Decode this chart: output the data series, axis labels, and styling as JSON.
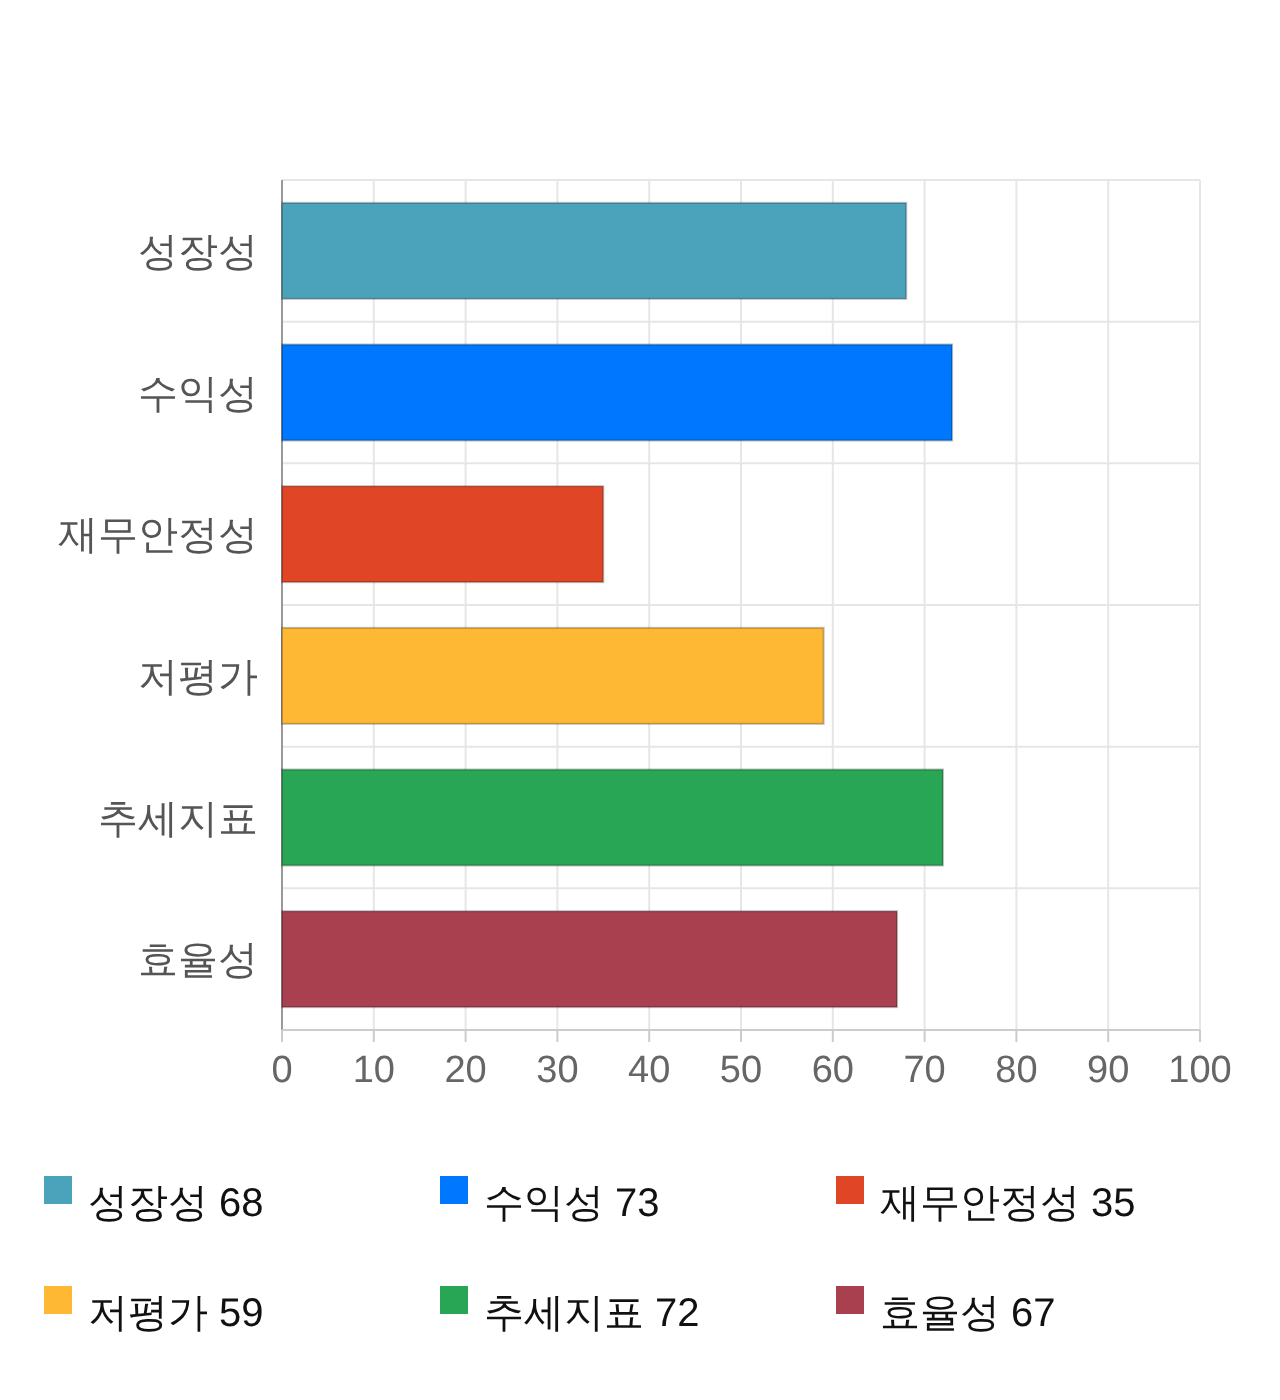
{
  "chart_data": {
    "type": "bar",
    "orientation": "horizontal",
    "stacked": true,
    "categories": [
      "성장성",
      "수익성",
      "재무안정성",
      "저평가",
      "추세지표",
      "효율성"
    ],
    "series": [
      {
        "name": "성장성 68",
        "color": "#4aa3bb",
        "values": [
          68,
          null,
          null,
          null,
          null,
          null
        ]
      },
      {
        "name": "수익성 73",
        "color": "#0077ff",
        "values": [
          null,
          73,
          null,
          null,
          null,
          null
        ]
      },
      {
        "name": "재무안정성 35",
        "color": "#e04526",
        "values": [
          null,
          null,
          35,
          null,
          null,
          null
        ]
      },
      {
        "name": "저평가 59",
        "color": "#ffb833",
        "values": [
          null,
          null,
          null,
          59,
          null,
          null
        ]
      },
      {
        "name": "추세지표 72",
        "color": "#28a655",
        "values": [
          null,
          null,
          null,
          null,
          72,
          null
        ]
      },
      {
        "name": "효율성 67",
        "color": "#a8404f",
        "values": [
          null,
          null,
          null,
          null,
          null,
          67
        ]
      }
    ],
    "xlim": [
      0,
      100
    ],
    "xticks": [
      0,
      10,
      20,
      30,
      40,
      50,
      60,
      70,
      80,
      90,
      100
    ],
    "grid": true,
    "legend": "bottom"
  }
}
